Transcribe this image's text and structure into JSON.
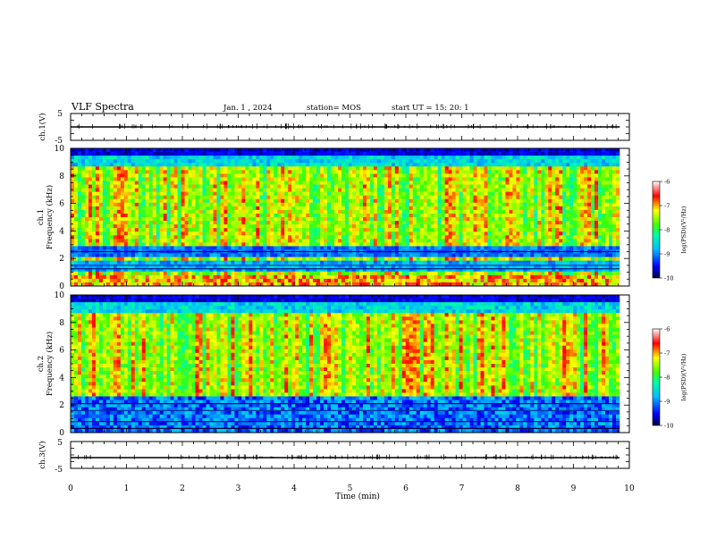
{
  "header": {
    "title": "VLF Spectra",
    "date": "Jan.  1  , 2024",
    "station": "station= MOS",
    "start_ut": "start  UT  =   15: 20: 1"
  },
  "chart_data": [
    {
      "type": "line",
      "name": "ch1-waveform",
      "ylabel": "ch.1(V)",
      "ylim": [
        -5,
        5
      ],
      "y_ticks": [
        "5",
        "-5"
      ],
      "xlim": [
        0,
        10
      ],
      "approx_level": 0
    },
    {
      "type": "heatmap",
      "name": "ch1-spectrogram",
      "ylabel": "ch.1\nFrequency (kHz)",
      "ylim": [
        0,
        10
      ],
      "y_ticks": [
        "0",
        "2",
        "4",
        "6",
        "8",
        "10"
      ],
      "xlim": [
        0,
        9.85
      ],
      "colorbar": {
        "label": "log(PSD)(V²/Hz)",
        "range": [
          -10,
          -6
        ],
        "ticks": [
          "-6",
          "-7",
          "-8",
          "-9",
          "-10"
        ]
      }
    },
    {
      "type": "heatmap",
      "name": "ch2-spectrogram",
      "ylabel": "ch.2\nFrequency (kHz)",
      "ylim": [
        0,
        10
      ],
      "y_ticks": [
        "0",
        "2",
        "4",
        "6",
        "8",
        "10"
      ],
      "xlim": [
        0,
        9.85
      ],
      "colorbar": {
        "label": "log(PSD)(V²/Hz)",
        "range": [
          -10,
          -6
        ],
        "ticks": [
          "-6",
          "-7",
          "-8",
          "-9",
          "-10"
        ]
      }
    },
    {
      "type": "line",
      "name": "ch3-waveform",
      "ylabel": "ch.3(V)",
      "ylim": [
        -5,
        5
      ],
      "y_ticks": [
        "5",
        "-5"
      ],
      "xlim": [
        0,
        10
      ],
      "approx_level": 0
    }
  ],
  "x_axis": {
    "label": "Time  (min)",
    "ticks": [
      "0",
      "1",
      "2",
      "3",
      "4",
      "5",
      "6",
      "7",
      "8",
      "9",
      "10"
    ]
  },
  "colormap": [
    "#000040",
    "#0000ff",
    "#00c0ff",
    "#00ffa0",
    "#40ff00",
    "#ffff00",
    "#ff0000",
    "#ffffff"
  ]
}
